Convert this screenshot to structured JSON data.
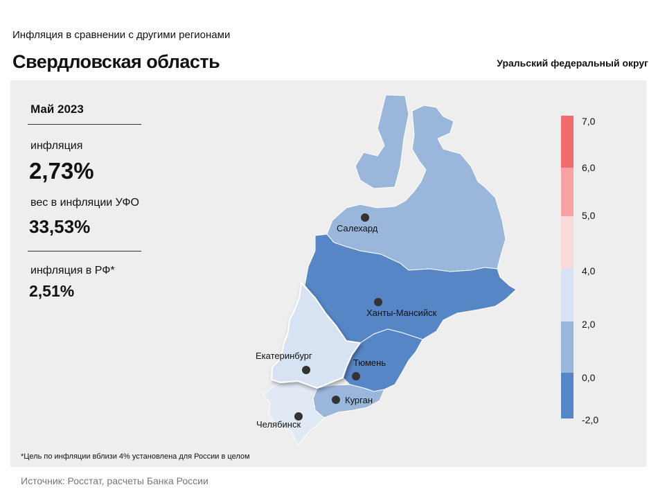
{
  "header": {
    "subtitle": "Инфляция  в сравнении  с другими  регионами",
    "title": "Свердловская область",
    "district": "Уральский федеральный округ"
  },
  "stats": {
    "period": "Май 2023",
    "inflation_label": "инфляция",
    "inflation_value": "2,73%",
    "weight_label": "вес в инфляции  УФО",
    "weight_value": "33,53%",
    "rf_label": "инфляция  в РФ*",
    "rf_value": "2,51%"
  },
  "cities": {
    "salekhard": "Салехард",
    "khanty": "Ханты-Мансийск",
    "ekaterinburg": "Екатеринбург",
    "tyumen": "Тюмень",
    "kurgan": "Курган",
    "chelyabinsk": "Челябинск"
  },
  "legend": {
    "ticks": [
      "7,0",
      "6,0",
      "5,0",
      "4,0",
      "2,0",
      "0,0",
      "-2,0"
    ],
    "bins": [
      {
        "from": 6.0,
        "to": 7.0,
        "color": "#f26b6f"
      },
      {
        "from": 5.0,
        "to": 6.0,
        "color": "#f7a3a6"
      },
      {
        "from": 4.0,
        "to": 5.0,
        "color": "#fadadd"
      },
      {
        "from": 2.0,
        "to": 4.0,
        "color": "#d7e2f2"
      },
      {
        "from": 0.0,
        "to": 2.0,
        "color": "#9ab6da"
      },
      {
        "from": -2.0,
        "to": 0.0,
        "color": "#5686c6"
      }
    ]
  },
  "region_colors": {
    "yamal": "#9ab6da",
    "khmao": "#5686c6",
    "sverdlovsk": "#d7e2f2",
    "tyumen": "#5686c6",
    "kurgan": "#9ab6da",
    "chelyabinsk": "#e1e9f5"
  },
  "footnote": "*Цель по инфляции вблизи 4% установлена для России в целом",
  "source": "Источник: Росстат, расчеты Банка России"
}
